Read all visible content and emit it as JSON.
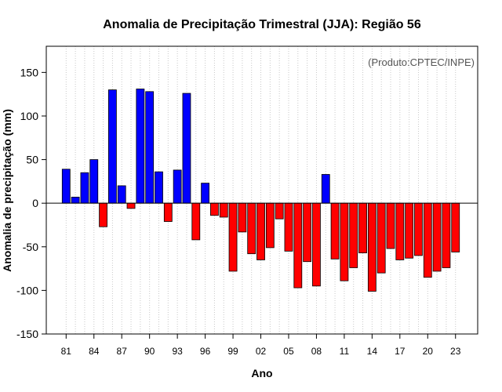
{
  "chart_data": {
    "type": "bar",
    "title": "Anomalia de Precipitação Trimestral (JJA): Região 56",
    "xlabel": "Ano",
    "ylabel": "Anomalia de precipitação (mm)",
    "credit": "(Produto:CPTEC/INPE)",
    "ylim": [
      -150,
      180
    ],
    "yticks": [
      -150,
      -100,
      -50,
      0,
      50,
      100,
      150
    ],
    "xtick_labels": [
      "81",
      "84",
      "87",
      "90",
      "93",
      "96",
      "99",
      "02",
      "05",
      "08",
      "11",
      "14",
      "17",
      "20",
      "23"
    ],
    "xtick_years": [
      1981,
      1984,
      1987,
      1990,
      1993,
      1996,
      1999,
      2002,
      2005,
      2008,
      2011,
      2014,
      2017,
      2020,
      2023
    ],
    "positive_color": "#0000ff",
    "negative_color": "#ff0000",
    "years": [
      1981,
      1982,
      1983,
      1984,
      1985,
      1986,
      1987,
      1988,
      1989,
      1990,
      1991,
      1992,
      1993,
      1994,
      1995,
      1996,
      1997,
      1998,
      1999,
      2000,
      2001,
      2002,
      2003,
      2004,
      2005,
      2006,
      2007,
      2008,
      2009,
      2010,
      2011,
      2012,
      2013,
      2014,
      2015,
      2016,
      2017,
      2018,
      2019,
      2020,
      2021,
      2022,
      2023
    ],
    "values": [
      39,
      7,
      35,
      50,
      -27,
      130,
      20,
      -6,
      131,
      128,
      36,
      -21,
      38,
      126,
      -42,
      23,
      -14,
      -16,
      -78,
      -33,
      -58,
      -65,
      -51,
      -18,
      -55,
      -97,
      -67,
      -95,
      33,
      -64,
      -89,
      -74,
      -57,
      -101,
      -80,
      -52,
      -65,
      -63,
      -60,
      -85,
      -78,
      -74,
      -56
    ]
  }
}
